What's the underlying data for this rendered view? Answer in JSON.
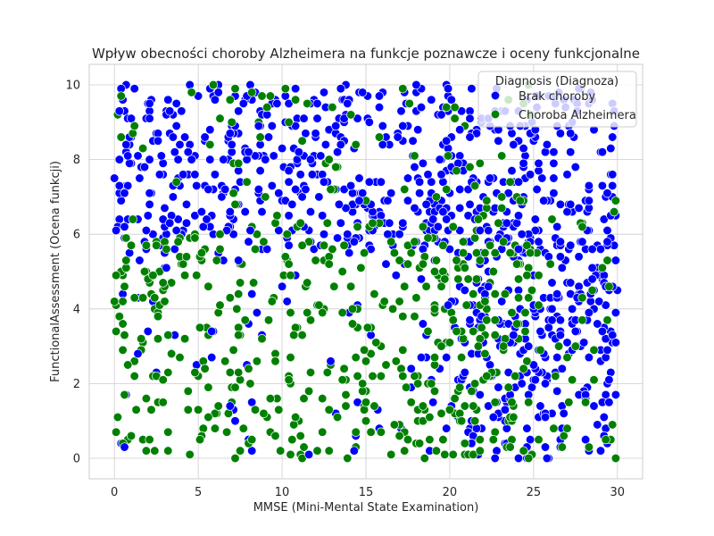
{
  "chart_data": {
    "type": "scatter",
    "title": "Wpływ obecności choroby Alzheimera na funkcje poznawcze i oceny funkcjonalne",
    "xlabel": "MMSE (Mini-Mental State Examination)",
    "ylabel": "FunctionalAssessment (Ocena funkcji)",
    "xlim": [
      -1.5,
      31.5
    ],
    "ylim": [
      -0.55,
      10.55
    ],
    "xticks": [
      0,
      5,
      10,
      15,
      20,
      25,
      30
    ],
    "yticks": [
      0,
      2,
      4,
      6,
      8,
      10
    ],
    "grid": true,
    "legend": {
      "title": "Diagnosis (Diagnoza)",
      "placement": "top-right"
    },
    "series": [
      {
        "name": "Brak choroby",
        "color": "#0000ff",
        "sample_points": [
          [
            0.3,
            9.3
          ],
          [
            1.2,
            9.9
          ],
          [
            2.8,
            8.1
          ],
          [
            4.1,
            7.6
          ],
          [
            5.5,
            6.4
          ],
          [
            6.2,
            9.8
          ],
          [
            7.4,
            5.3
          ],
          [
            8.6,
            8.9
          ],
          [
            9.7,
            9.5
          ],
          [
            10.8,
            7.2
          ],
          [
            12.1,
            9.1
          ],
          [
            13.5,
            8.4
          ],
          [
            14.6,
            6.9
          ],
          [
            15.8,
            9.7
          ],
          [
            16.9,
            8.6
          ],
          [
            18.2,
            7.4
          ],
          [
            19.5,
            9.2
          ],
          [
            20.6,
            8.8
          ],
          [
            21.8,
            6.1
          ],
          [
            22.9,
            8.5
          ],
          [
            24.1,
            5.6
          ],
          [
            25.3,
            7.9
          ],
          [
            26.4,
            4.4
          ],
          [
            27.6,
            9.3
          ],
          [
            28.8,
            3.6
          ],
          [
            29.7,
            8.6
          ],
          [
            25.1,
            2.1
          ],
          [
            26.8,
            1.2
          ],
          [
            28.1,
            0.5
          ],
          [
            29.4,
            2.9
          ],
          [
            23.8,
            3.3
          ],
          [
            27.2,
            6.8
          ],
          [
            0.6,
            0.3
          ],
          [
            1.4,
            2.8
          ],
          [
            3.1,
            5.1
          ],
          [
            5.8,
            3.4
          ],
          [
            8.1,
            6.1
          ],
          [
            10.4,
            5.7
          ],
          [
            12.9,
            2.6
          ],
          [
            14.3,
            0.2
          ],
          [
            17.7,
            2.4
          ],
          [
            19.9,
            4.1
          ],
          [
            22.3,
            4.6
          ],
          [
            24.6,
            0.8
          ],
          [
            26.1,
            3.7
          ],
          [
            28.5,
            4.8
          ],
          [
            29.9,
            1.7
          ],
          [
            11.6,
            0.1
          ],
          [
            6.9,
            1.4
          ]
        ]
      },
      {
        "name": "Choroba Alzheimera",
        "color": "#008000",
        "sample_points": [
          [
            0.4,
            8.6
          ],
          [
            1.1,
            6.4
          ],
          [
            2.3,
            4.9
          ],
          [
            3.2,
            3.3
          ],
          [
            4.4,
            1.8
          ],
          [
            5.1,
            0.5
          ],
          [
            6.6,
            2.6
          ],
          [
            7.8,
            3.7
          ],
          [
            8.9,
            1.2
          ],
          [
            9.6,
            0.6
          ],
          [
            10.5,
            4.9
          ],
          [
            11.7,
            2.3
          ],
          [
            12.4,
            3.9
          ],
          [
            13.8,
            1.4
          ],
          [
            14.9,
            5.5
          ],
          [
            15.6,
            3.1
          ],
          [
            16.7,
            0.9
          ],
          [
            17.3,
            4.6
          ],
          [
            18.4,
            6.2
          ],
          [
            19.1,
            2.7
          ],
          [
            20.3,
            1.6
          ],
          [
            21.4,
            3.4
          ],
          [
            22.2,
            2.2
          ],
          [
            23.3,
            4.4
          ],
          [
            24.2,
            6.9
          ],
          [
            8.2,
            9.8
          ],
          [
            9.3,
            9.7
          ],
          [
            14.1,
            9.2
          ],
          [
            17.6,
            9.5
          ],
          [
            19.8,
            9.4
          ],
          [
            23.6,
            7.4
          ],
          [
            29.8,
            6.6
          ],
          [
            29.9,
            6.9
          ],
          [
            1.9,
            1.6
          ],
          [
            4.8,
            5.9
          ],
          [
            7.1,
            7.1
          ],
          [
            11.1,
            6.3
          ],
          [
            13.2,
            7.8
          ],
          [
            16.1,
            4.2
          ],
          [
            18.8,
            1.1
          ],
          [
            20.9,
            5.1
          ],
          [
            22.6,
            0.5
          ],
          [
            3.7,
            7.4
          ],
          [
            6.3,
            4.1
          ],
          [
            12.8,
            5.2
          ]
        ]
      }
    ]
  }
}
